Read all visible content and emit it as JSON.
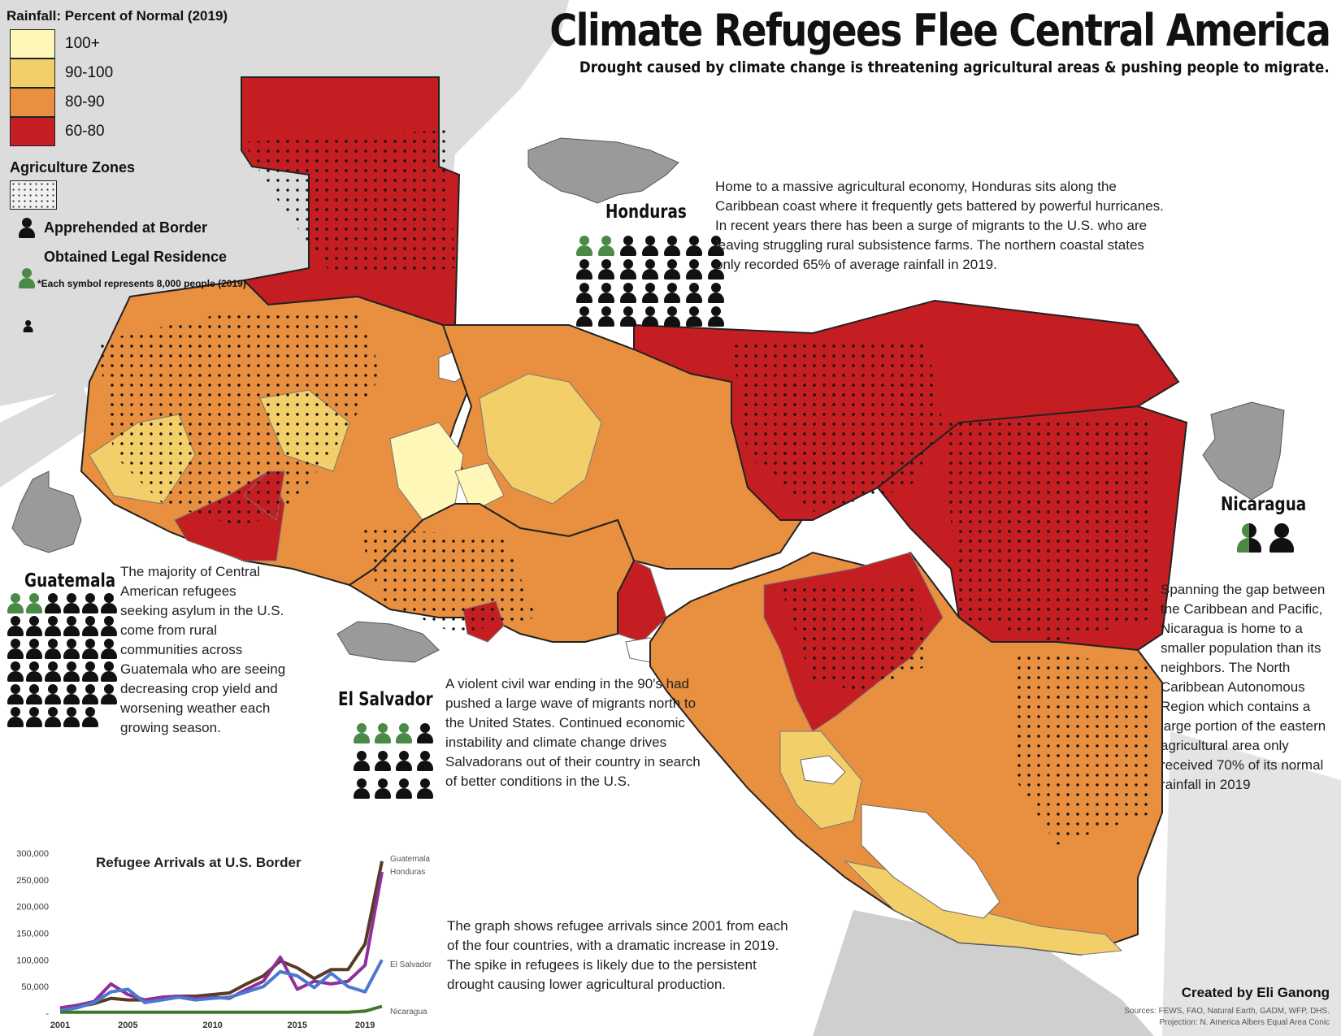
{
  "title": "Climate Refugees Flee Central America",
  "subtitle": "Drought caused by climate change is threatening agricultural areas & pushing people to migrate.",
  "legend": {
    "rainfall_title": "Rainfall: Percent of Normal (2019)",
    "rainfall_classes": [
      {
        "label": "100+",
        "color": "#fff7b8"
      },
      {
        "label": "90-100",
        "color": "#f3cf6a"
      },
      {
        "label": "80-90",
        "color": "#e8903f"
      },
      {
        "label": "60-80",
        "color": "#c41e22"
      }
    ],
    "agriculture_title": "Agriculture Zones",
    "apprehended_label": "Apprehended at Border",
    "legal_label": "Obtained Legal Residence",
    "symbol_note": "*Each symbol represents 8,000 people (2019)",
    "apprehended_color": "#111111",
    "legal_color": "#4a8a46"
  },
  "countries": {
    "guatemala": {
      "name": "Guatemala",
      "green_icons": 2,
      "black_icons": 33,
      "text": "The majority of Central American refugees seeking asylum in the U.S. come from rural communities across Guatemala who are seeing decreasing crop yield and worsening weather each growing season."
    },
    "honduras": {
      "name": "Honduras",
      "green_icons": 2,
      "black_icons": 26,
      "text": "Home to a massive agricultural economy, Honduras sits along the Caribbean coast where it frequently gets battered by powerful hurricanes. In recent years there has been a surge of migrants to the U.S. who are leaving struggling rural subsistence farms. The northern coastal states only recorded 65% of average rainfall in 2019."
    },
    "el_salvador": {
      "name": "El Salvador",
      "green_icons": 3,
      "black_icons": 9,
      "text": "A violent civil war ending in the 90's had pushed a large wave of migrants north to the United States. Continued economic instability and climate change drives Salvadorans out of their country in search of better conditions in the U.S."
    },
    "nicaragua": {
      "name": "Nicaragua",
      "half_green_icons": 1,
      "black_icons": 1,
      "text": "Spanning the gap between the Caribbean and Pacific, Nicaragua is home to a smaller population than its neighbors. The North Caribbean Autonomous Region which contains a large portion of the eastern agricultural area only received 70% of its normal rainfall in 2019"
    }
  },
  "graph_note": "The graph shows refugee arrivals since 2001 from each of the four countries, with a dramatic increase in 2019. The spike in refugees is likely due to the persistent drought causing lower agricultural production.",
  "chart_data": {
    "type": "line",
    "title": "Refugee Arrivals at U.S. Border",
    "x": [
      2001,
      2002,
      2003,
      2004,
      2005,
      2006,
      2007,
      2008,
      2009,
      2010,
      2011,
      2012,
      2013,
      2014,
      2015,
      2016,
      2017,
      2018,
      2019,
      2020
    ],
    "xticks": [
      2001,
      2005,
      2010,
      2015,
      2019
    ],
    "ylim": [
      0,
      300000
    ],
    "yticks": [
      0,
      50000,
      100000,
      150000,
      200000,
      250000,
      300000
    ],
    "ytick_labels": [
      "-",
      "50,000",
      "100,000",
      "150,000",
      "200,000",
      "250,000",
      "300,000"
    ],
    "series": [
      {
        "name": "Guatemala",
        "color": "#5a3a22",
        "values": [
          8000,
          12000,
          18000,
          28000,
          25000,
          25000,
          30000,
          32000,
          32000,
          35000,
          38000,
          55000,
          70000,
          98000,
          85000,
          65000,
          82000,
          82000,
          130000,
          285000
        ]
      },
      {
        "name": "Honduras",
        "color": "#8e2f9a",
        "values": [
          10000,
          15000,
          22000,
          55000,
          35000,
          25000,
          30000,
          32000,
          28000,
          30000,
          28000,
          45000,
          60000,
          105000,
          45000,
          60000,
          55000,
          60000,
          90000,
          265000
        ]
      },
      {
        "name": "El Salvador",
        "color": "#4c79d0",
        "values": [
          5000,
          10000,
          20000,
          40000,
          45000,
          20000,
          25000,
          30000,
          25000,
          28000,
          30000,
          40000,
          50000,
          78000,
          70000,
          48000,
          75000,
          50000,
          40000,
          100000
        ]
      },
      {
        "name": "Nicaragua",
        "color": "#3f7a2a",
        "values": [
          2000,
          2000,
          2000,
          2000,
          2000,
          2000,
          2000,
          2000,
          2000,
          2000,
          2000,
          2000,
          2000,
          2000,
          2000,
          2000,
          2000,
          2000,
          4000,
          13000
        ]
      }
    ],
    "series_labels": {
      "guatemala": "Guatemala",
      "honduras": "Honduras",
      "el_salvador": "El Salvador",
      "nicaragua": "Nicaragua"
    }
  },
  "credit": "Created by Eli Ganong",
  "sources": "Sources: FEWS, FAO, Natural Earth, GADM, WFP, DHS.",
  "projection": "Projection: N. America Albers Equal Area Conic"
}
